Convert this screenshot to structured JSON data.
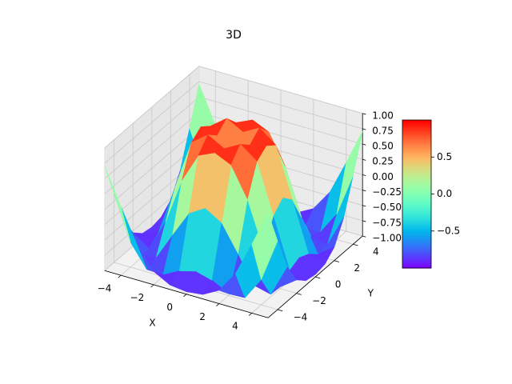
{
  "chart_data": {
    "type": "surface3d",
    "title": "3D",
    "xlabel": "X",
    "ylabel": "Y",
    "colormap": "rainbow",
    "x": [
      -5,
      -4,
      -3,
      -2,
      -1,
      0,
      1,
      2,
      3,
      4,
      5
    ],
    "y": [
      -5,
      -4,
      -3,
      -2,
      -1,
      0,
      1,
      2,
      3,
      4,
      5
    ],
    "z": [
      [
        0.709,
        0.12,
        -0.437,
        -0.782,
        -0.927,
        -0.959,
        -0.927,
        -0.782,
        -0.437,
        0.12,
        0.709
      ],
      [
        0.12,
        -0.586,
        -0.959,
        -0.971,
        -0.83,
        -0.757,
        -0.83,
        -0.971,
        -0.959,
        -0.586,
        0.12
      ],
      [
        -0.437,
        -0.959,
        -0.892,
        -0.448,
        -0.021,
        0.141,
        -0.021,
        -0.448,
        -0.892,
        -0.959,
        -0.437
      ],
      [
        -0.782,
        -0.971,
        -0.448,
        0.308,
        0.787,
        0.909,
        0.787,
        0.308,
        -0.448,
        -0.971,
        -0.782
      ],
      [
        -0.927,
        -0.83,
        -0.021,
        0.787,
        0.988,
        0.841,
        0.988,
        0.787,
        -0.021,
        -0.83,
        -0.927
      ],
      [
        -0.959,
        -0.757,
        0.141,
        0.909,
        0.841,
        0,
        0.841,
        0.909,
        0.141,
        -0.757,
        -0.959
      ],
      [
        -0.927,
        -0.83,
        -0.021,
        0.787,
        0.988,
        0.841,
        0.988,
        0.787,
        -0.021,
        -0.83,
        -0.927
      ],
      [
        -0.782,
        -0.971,
        -0.448,
        0.308,
        0.787,
        0.909,
        0.787,
        0.308,
        -0.448,
        -0.971,
        -0.782
      ],
      [
        -0.437,
        -0.959,
        -0.892,
        -0.448,
        -0.021,
        0.141,
        -0.021,
        -0.448,
        -0.892,
        -0.959,
        -0.437
      ],
      [
        0.12,
        -0.586,
        -0.959,
        -0.971,
        -0.83,
        -0.757,
        -0.83,
        -0.971,
        -0.959,
        -0.586,
        0.12
      ],
      [
        0.709,
        0.12,
        -0.437,
        -0.782,
        -0.927,
        -0.959,
        -0.927,
        -0.782,
        -0.437,
        0.12,
        0.709
      ]
    ],
    "xlim": [
      -5,
      5
    ],
    "ylim": [
      -5,
      5
    ],
    "zlim": [
      -1,
      1
    ],
    "xticks": [
      {
        "value": -4,
        "label": "−4"
      },
      {
        "value": -2,
        "label": "−2"
      },
      0,
      2,
      4
    ],
    "yticks": [
      {
        "value": -4,
        "label": "−4"
      },
      {
        "value": -2,
        "label": "−2"
      },
      0,
      2,
      4
    ],
    "zticks": [
      {
        "value": -1,
        "label": "−1.00"
      },
      {
        "value": -0.75,
        "label": "−0.75"
      },
      {
        "value": -0.5,
        "label": "−0.50"
      },
      {
        "value": -0.25,
        "label": "−0.25"
      },
      {
        "value": 0,
        "label": "0.00"
      },
      {
        "value": 0.25,
        "label": "0.25"
      },
      {
        "value": 0.5,
        "label": "0.50"
      },
      {
        "value": 0.75,
        "label": "0.75"
      },
      {
        "value": 1,
        "label": "1.00"
      }
    ],
    "clim": [
      -1,
      1
    ],
    "cticks": [
      {
        "value": -0.5,
        "label": "−0.5"
      },
      {
        "value": 0,
        "label": "0.0"
      },
      {
        "value": 0.5,
        "label": "0.5"
      }
    ]
  }
}
